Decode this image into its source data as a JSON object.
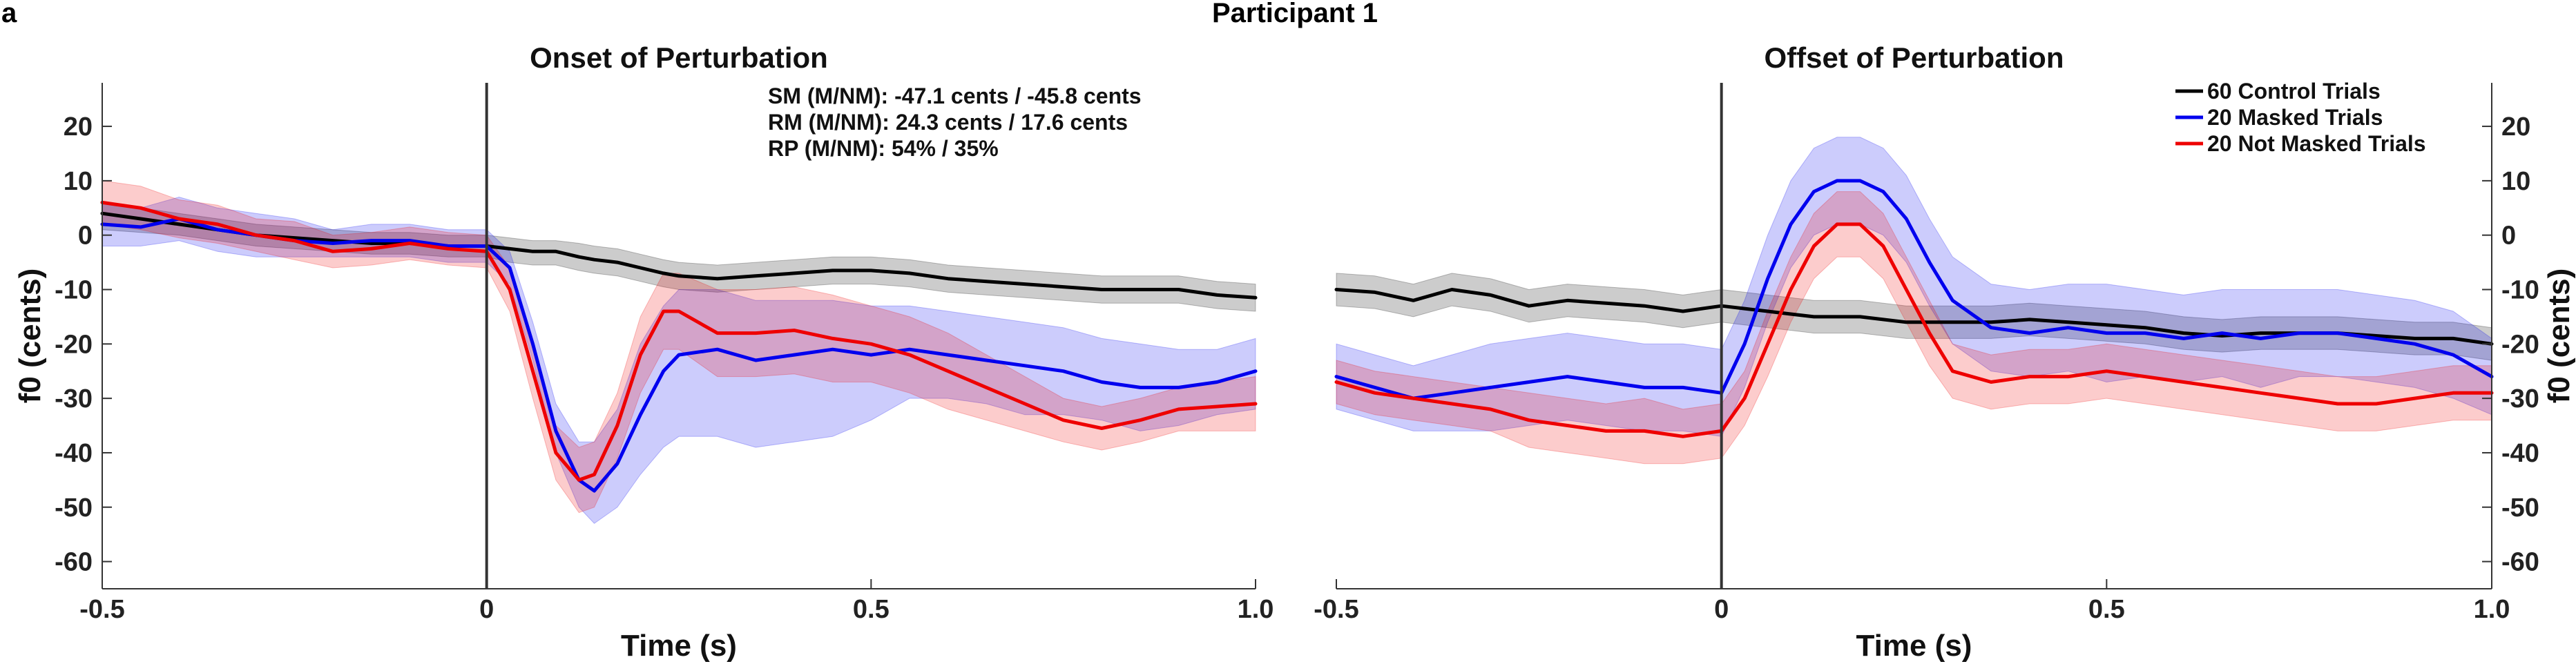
{
  "figure": {
    "panel_letter": "a",
    "title": "Participant 1",
    "colors": {
      "control": "#000000",
      "masked": "#0000ee",
      "not_masked": "#ee0000"
    }
  },
  "chart_data": [
    {
      "type": "line",
      "title": "Onset of Perturbation",
      "xlabel": "Time (s)",
      "ylabel": "f0 (cents)",
      "xlim": [
        -0.5,
        1.0
      ],
      "ylim": [
        -65,
        28
      ],
      "xticks": [
        -0.5,
        0,
        0.5,
        1.0
      ],
      "xtick_labels": [
        "-0.5",
        "0",
        "0.5",
        "1.0"
      ],
      "yticks": [
        20,
        10,
        0,
        -10,
        -20,
        -30,
        -40,
        -50,
        -60
      ],
      "ytick_labels": [
        "20",
        "10",
        "0",
        "-10",
        "-20",
        "-30",
        "-40",
        "-50",
        "-60"
      ],
      "axis_side": "left",
      "vline_x": 0,
      "grid": false,
      "annotations": [
        "SM (M/NM): -47.1 cents / -45.8 cents",
        "RM (M/NM): 24.3 cents / 17.6 cents",
        "RP (M/NM): 54% / 35%"
      ],
      "x": [
        -0.5,
        -0.45,
        -0.4,
        -0.35,
        -0.3,
        -0.25,
        -0.2,
        -0.15,
        -0.1,
        -0.05,
        0,
        0.03,
        0.06,
        0.09,
        0.12,
        0.14,
        0.17,
        0.2,
        0.23,
        0.25,
        0.3,
        0.35,
        0.4,
        0.45,
        0.5,
        0.55,
        0.6,
        0.65,
        0.7,
        0.75,
        0.8,
        0.85,
        0.9,
        0.95,
        1.0
      ],
      "series": [
        {
          "name": "60 Control Trials",
          "color_key": "control",
          "values": [
            4,
            3,
            2,
            1,
            0,
            -0.5,
            -1,
            -1.5,
            -1.5,
            -2,
            -2,
            -2.5,
            -3,
            -3,
            -4,
            -4.5,
            -5,
            -6,
            -7,
            -7.5,
            -8,
            -7.5,
            -7,
            -6.5,
            -6.5,
            -7,
            -8,
            -8.5,
            -9,
            -9.5,
            -10,
            -10,
            -10,
            -11,
            -11.5
          ],
          "lower": [
            1,
            0.5,
            0,
            -1,
            -2,
            -2.5,
            -3,
            -3.5,
            -3.5,
            -4,
            -4,
            -5,
            -5.5,
            -5.5,
            -6.5,
            -7,
            -7.5,
            -8.5,
            -9.5,
            -10,
            -10.5,
            -10,
            -9.5,
            -9,
            -9,
            -9.5,
            -10.5,
            -11,
            -11.5,
            -12,
            -12.5,
            -12.5,
            -12.5,
            -13.5,
            -14
          ],
          "upper": [
            6,
            5,
            4,
            3,
            2,
            1.5,
            1,
            0.5,
            0.5,
            0,
            0,
            -0.5,
            -1,
            -1,
            -1.5,
            -2,
            -2.5,
            -3.5,
            -4.5,
            -5,
            -5.5,
            -5,
            -4.5,
            -4,
            -4,
            -4.5,
            -5.5,
            -6,
            -6.5,
            -7,
            -7.5,
            -7.5,
            -7.5,
            -8.5,
            -9
          ]
        },
        {
          "name": "20 Masked Trials",
          "color_key": "masked",
          "values": [
            2,
            1.5,
            3,
            1,
            0,
            -1,
            -1.5,
            -1,
            -1,
            -2,
            -2,
            -6,
            -20,
            -36,
            -45,
            -47,
            -42,
            -33,
            -25,
            -22,
            -21,
            -23,
            -22,
            -21,
            -22,
            -21,
            -22,
            -23,
            -24,
            -25,
            -27,
            -28,
            -28,
            -27,
            -25
          ],
          "lower": [
            -2,
            -2,
            -1,
            -3,
            -4,
            -4,
            -4,
            -4,
            -4,
            -5,
            -5,
            -9,
            -23,
            -40,
            -50,
            -53,
            -50,
            -44,
            -39,
            -37,
            -37,
            -39,
            -38,
            -37,
            -34,
            -30,
            -30,
            -31,
            -33,
            -33,
            -34,
            -36,
            -35,
            -33,
            -32
          ],
          "upper": [
            6,
            5,
            7,
            5,
            4,
            3,
            1,
            2,
            2,
            1,
            1,
            -3,
            -16,
            -31,
            -38,
            -38,
            -32,
            -20,
            -13,
            -10,
            -10,
            -12,
            -12,
            -12,
            -13,
            -13,
            -14,
            -15,
            -16,
            -17,
            -19,
            -20,
            -21,
            -21,
            -19
          ]
        },
        {
          "name": "20 Not Masked Trials",
          "color_key": "not_masked",
          "values": [
            6,
            5,
            3,
            2,
            0,
            -1,
            -3,
            -2.5,
            -1.5,
            -2.5,
            -3,
            -10,
            -25,
            -40,
            -45,
            -44,
            -35,
            -22,
            -14,
            -14,
            -18,
            -18,
            -17.5,
            -19,
            -20,
            -22,
            -25,
            -28,
            -31,
            -34,
            -35.5,
            -34,
            -32,
            -31.5,
            -31
          ],
          "lower": [
            2,
            1,
            -0.5,
            -1.5,
            -3,
            -4.5,
            -6,
            -5.5,
            -4.5,
            -5.5,
            -6,
            -14,
            -30,
            -45,
            -51,
            -50,
            -41,
            -29,
            -21,
            -21,
            -26,
            -26,
            -25.5,
            -27,
            -27,
            -29,
            -32,
            -34,
            -36,
            -38,
            -39.5,
            -38,
            -36,
            -36,
            -36
          ],
          "upper": [
            10,
            9,
            6.5,
            5.5,
            3,
            2.5,
            0,
            0.5,
            1.5,
            0.5,
            0,
            -6,
            -20,
            -35,
            -39,
            -38,
            -29,
            -15,
            -7,
            -7,
            -10,
            -10,
            -9.5,
            -11,
            -13,
            -15,
            -18,
            -22,
            -26,
            -30,
            -31.5,
            -30,
            -28,
            -27,
            -26
          ]
        }
      ]
    },
    {
      "type": "line",
      "title": "Offset of Perturbation",
      "xlabel": "Time (s)",
      "ylabel": "f0 (cents)",
      "xlim": [
        -0.5,
        1.0
      ],
      "ylim": [
        -65,
        28
      ],
      "xticks": [
        -0.5,
        0,
        0.5,
        1.0
      ],
      "xtick_labels": [
        "-0.5",
        "0",
        "0.5",
        "1.0"
      ],
      "yticks": [
        20,
        10,
        0,
        -10,
        -20,
        -30,
        -40,
        -50,
        -60
      ],
      "ytick_labels": [
        "20",
        "10",
        "0",
        "-10",
        "-20",
        "-30",
        "-40",
        "-50",
        "-60"
      ],
      "axis_side": "right",
      "vline_x": 0,
      "grid": false,
      "legend_position": "top-right",
      "x": [
        -0.5,
        -0.45,
        -0.4,
        -0.35,
        -0.3,
        -0.25,
        -0.2,
        -0.15,
        -0.1,
        -0.05,
        0,
        0.03,
        0.06,
        0.09,
        0.12,
        0.15,
        0.18,
        0.21,
        0.24,
        0.27,
        0.3,
        0.35,
        0.4,
        0.45,
        0.5,
        0.55,
        0.6,
        0.65,
        0.7,
        0.75,
        0.8,
        0.85,
        0.9,
        0.95,
        1.0
      ],
      "series": [
        {
          "name": "60 Control Trials",
          "color_key": "control",
          "values": [
            -10,
            -10.5,
            -12,
            -10,
            -11,
            -13,
            -12,
            -12.5,
            -13,
            -14,
            -13,
            -13.5,
            -14,
            -14.5,
            -15,
            -15,
            -15,
            -15.5,
            -16,
            -16,
            -16,
            -16,
            -15.5,
            -16,
            -16.5,
            -17,
            -18,
            -18.5,
            -18,
            -18,
            -18,
            -18.5,
            -19,
            -19,
            -20
          ],
          "lower": [
            -13,
            -13.5,
            -15,
            -13,
            -14,
            -16,
            -15,
            -15.5,
            -16,
            -17,
            -16,
            -16.5,
            -17,
            -17.5,
            -18,
            -18,
            -18,
            -18.5,
            -19,
            -19,
            -19,
            -19,
            -18.5,
            -19,
            -19.5,
            -20,
            -21,
            -21.5,
            -21,
            -21,
            -21,
            -21.5,
            -22,
            -22,
            -23
          ],
          "upper": [
            -7,
            -7.5,
            -9,
            -7,
            -8,
            -10,
            -9,
            -9.5,
            -10,
            -11,
            -10,
            -10.5,
            -11,
            -11.5,
            -12,
            -12,
            -12,
            -12.5,
            -13,
            -13,
            -13,
            -13,
            -12.5,
            -13,
            -13.5,
            -14,
            -15,
            -15.5,
            -15,
            -15,
            -15,
            -15.5,
            -16,
            -16,
            -17
          ]
        },
        {
          "name": "20 Masked Trials",
          "color_key": "masked",
          "values": [
            -26,
            -28,
            -30,
            -29,
            -28,
            -27,
            -26,
            -27,
            -28,
            -28,
            -29,
            -20,
            -8,
            2,
            8,
            10,
            10,
            8,
            3,
            -5,
            -12,
            -17,
            -18,
            -17,
            -18,
            -18,
            -19,
            -18,
            -19,
            -18,
            -18,
            -19,
            -20,
            -22,
            -26
          ],
          "lower": [
            -32,
            -34,
            -36,
            -36,
            -36,
            -35,
            -34,
            -35,
            -36,
            -36,
            -37,
            -28,
            -16,
            -6,
            0,
            2,
            2,
            0,
            -5,
            -13,
            -20,
            -25,
            -26,
            -25,
            -27,
            -26,
            -27,
            -26,
            -28,
            -26,
            -26,
            -27,
            -28,
            -30,
            -33
          ],
          "upper": [
            -20,
            -22,
            -24,
            -22,
            -20,
            -19,
            -18,
            -19,
            -20,
            -20,
            -21,
            -12,
            0,
            10,
            16,
            18,
            18,
            16,
            11,
            3,
            -4,
            -9,
            -10,
            -9,
            -9,
            -10,
            -11,
            -10,
            -10,
            -10,
            -10,
            -11,
            -12,
            -14,
            -19
          ]
        },
        {
          "name": "20 Not Masked Trials",
          "color_key": "not_masked",
          "values": [
            -27,
            -29,
            -30,
            -31,
            -32,
            -34,
            -35,
            -36,
            -36,
            -37,
            -36,
            -30,
            -20,
            -10,
            -2,
            2,
            2,
            -2,
            -10,
            -18,
            -25,
            -27,
            -26,
            -26,
            -25,
            -26,
            -27,
            -28,
            -29,
            -30,
            -31,
            -31,
            -30,
            -29,
            -29
          ],
          "lower": [
            -31,
            -33,
            -34,
            -35,
            -36,
            -39,
            -40,
            -41,
            -42,
            -42,
            -41,
            -35,
            -26,
            -16,
            -8,
            -4,
            -4,
            -8,
            -16,
            -24,
            -30,
            -32,
            -31,
            -31,
            -30,
            -31,
            -32,
            -33,
            -34,
            -35,
            -36,
            -36,
            -35,
            -34,
            -34
          ],
          "upper": [
            -23,
            -25,
            -26,
            -27,
            -28,
            -29,
            -30,
            -31,
            -30,
            -32,
            -31,
            -25,
            -14,
            -4,
            4,
            8,
            8,
            4,
            -4,
            -12,
            -20,
            -22,
            -21,
            -21,
            -20,
            -21,
            -22,
            -23,
            -24,
            -25,
            -26,
            -26,
            -25,
            -24,
            -24
          ]
        }
      ]
    }
  ]
}
